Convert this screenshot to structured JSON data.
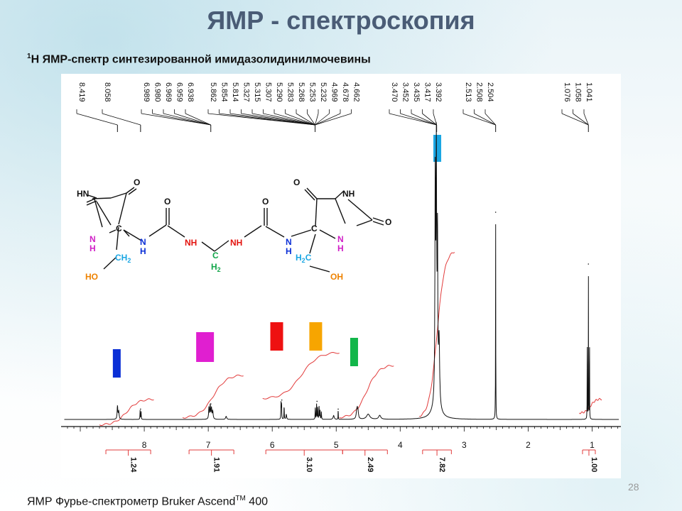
{
  "slide": {
    "title": "ЯМР - спектроскопия",
    "subtitle_sup": "1",
    "subtitle_rest": "Н ЯМР-спектр синтезированной имидазолидинилмочевины",
    "footer_main": "ЯМР Фурье-спектрометр Bruker Ascend",
    "footer_tm": "TM",
    "footer_model": " 400",
    "page_number": "28"
  },
  "chart_data": {
    "type": "line",
    "xlabel": "",
    "ylabel": "",
    "xlim": [
      9.3,
      0.55
    ],
    "x_ticks": [
      "8",
      "7",
      "6",
      "5",
      "4",
      "3",
      "2",
      "1"
    ],
    "peak_labels": [
      {
        "group": "g1",
        "labels": [
          "8.419"
        ]
      },
      {
        "group": "g2",
        "labels": [
          "8.058"
        ]
      },
      {
        "group": "g3",
        "labels": [
          "6.989",
          "6.980",
          "6.969",
          "6.959",
          "6.938"
        ]
      },
      {
        "group": "g4",
        "labels": [
          "5.862",
          "5.854",
          "5.814",
          "5.327",
          "5.315",
          "5.307",
          "5.290",
          "5.283",
          "5.268",
          "5.253",
          "5.232",
          "4.969",
          "4.678",
          "4.662"
        ]
      },
      {
        "group": "g5",
        "labels": [
          "3.470",
          "3.452",
          "3.435",
          "3.417",
          "3.392"
        ]
      },
      {
        "group": "g6",
        "labels": [
          "2.513",
          "2.508",
          "2.504"
        ]
      },
      {
        "group": "g7",
        "labels": [
          "1.076",
          "1.058",
          "1.041"
        ]
      }
    ],
    "integrals": [
      {
        "from": 8.6,
        "to": 7.9,
        "value": "1.24"
      },
      {
        "from": 7.3,
        "to": 6.6,
        "value": "1.91"
      },
      {
        "from": 6.1,
        "to": 4.9,
        "value": "3.10"
      },
      {
        "from": 4.9,
        "to": 4.2,
        "value": "2.49"
      },
      {
        "from": 3.65,
        "to": 3.2,
        "value": "7.82"
      },
      {
        "from": 1.15,
        "to": 0.95,
        "value": "1.00"
      }
    ],
    "assignment_markers": [
      {
        "shift": 8.43,
        "color": "#0a2fd6"
      },
      {
        "shift": 7.05,
        "color": "#e01fd0"
      },
      {
        "shift": 5.93,
        "color": "#ee1111"
      },
      {
        "shift": 5.32,
        "color": "#f7a500"
      },
      {
        "shift": 4.72,
        "color": "#12b64a"
      },
      {
        "shift": 3.42,
        "color": "#1aa6e3"
      }
    ],
    "peaks": [
      {
        "shift": 8.419,
        "height": 0.045
      },
      {
        "shift": 8.058,
        "height": 0.04
      },
      {
        "shift": 6.96,
        "height": 0.06
      },
      {
        "shift": 5.85,
        "height": 0.075
      },
      {
        "shift": 5.3,
        "height": 0.07
      },
      {
        "shift": 4.969,
        "height": 0.04
      },
      {
        "shift": 4.67,
        "height": 0.05
      },
      {
        "shift": 3.44,
        "height": 0.93
      },
      {
        "shift": 2.508,
        "height": 0.8
      },
      {
        "shift": 1.058,
        "height": 0.6
      }
    ]
  },
  "molecule": {
    "O_left_ring": "O",
    "HN_left": "HN",
    "O_left_outer": "O",
    "N_left_ring": "N",
    "H_left_ring": "H",
    "C_left": "C",
    "CH2_left": "CH",
    "CH2_left_sub": "2",
    "HO_left": "HO",
    "N_amide_left": "N",
    "H_amide_left": "H",
    "O_urea_left": "O",
    "NH_center_left": "NH",
    "C_center": "C",
    "H2_center": "H",
    "H2_center_sub": "2",
    "NH_center_right": "NH",
    "O_urea_right": "O",
    "N_amide_right": "N",
    "H_amide_right": "H",
    "C_right": "C",
    "H2C_right_H": "H",
    "H2C_right_sub": "2",
    "H2C_right_C": "C",
    "OH_right": "OH",
    "N_right_ring": "N",
    "H_right_ring": "H",
    "O_right_ring": "O",
    "NH_right": "NH",
    "O_right_outer": "O",
    "colors": {
      "black": "#111111",
      "magenta": "#d01fc6",
      "red": "#e3140f",
      "green": "#12a64a",
      "blue": "#0b2fd6",
      "cyan": "#1aa6e3",
      "orange": "#ee8200"
    }
  }
}
